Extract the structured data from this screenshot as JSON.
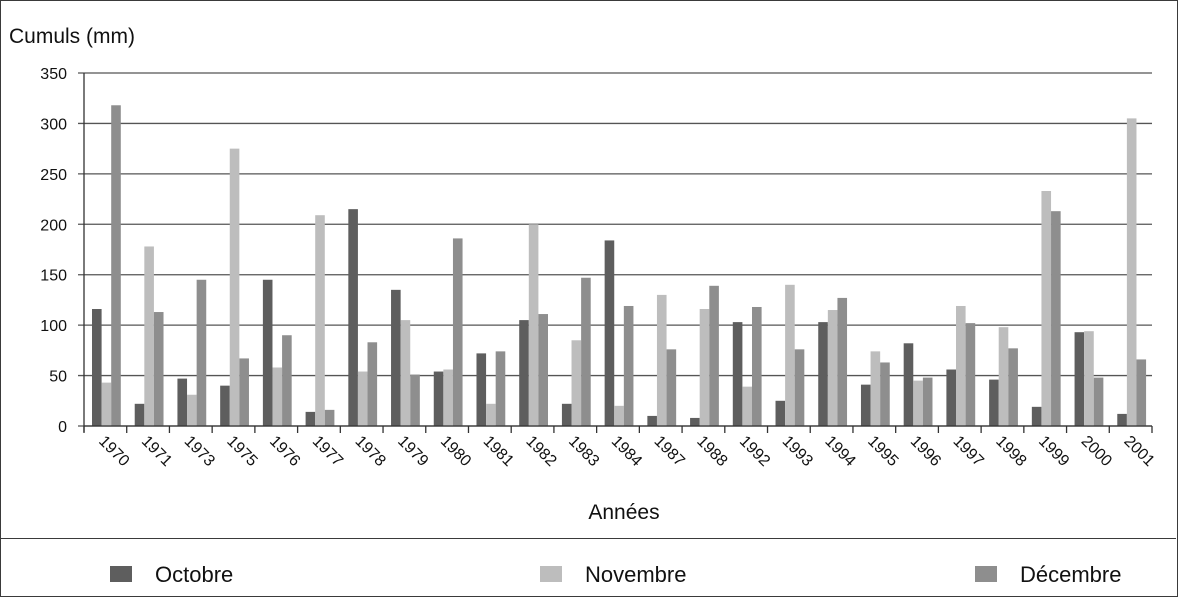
{
  "chart_data": {
    "type": "bar",
    "ylabel": "Cumuls (mm)",
    "xlabel": "Années",
    "ylim": [
      0,
      350
    ],
    "yticks": [
      0,
      50,
      100,
      150,
      200,
      250,
      300,
      350
    ],
    "grid": true,
    "legend_position": "bottom",
    "categories": [
      "1970",
      "1971",
      "1973",
      "1975",
      "1976",
      "1977",
      "1978",
      "1979",
      "1980",
      "1981",
      "1982",
      "1983",
      "1984",
      "1987",
      "1988",
      "1992",
      "1993",
      "1994",
      "1995",
      "1996",
      "1997",
      "1998",
      "1999",
      "2000",
      "2001"
    ],
    "series": [
      {
        "name": "Octobre",
        "color": "#5e5e5e",
        "values": [
          116,
          22,
          47,
          40,
          145,
          14,
          215,
          135,
          54,
          72,
          105,
          22,
          184,
          10,
          8,
          103,
          25,
          103,
          41,
          82,
          56,
          46,
          19,
          93,
          12
        ]
      },
      {
        "name": "Novembre",
        "color": "#bdbdbd",
        "values": [
          43,
          178,
          31,
          275,
          58,
          209,
          54,
          105,
          56,
          22,
          200,
          85,
          20,
          130,
          116,
          39,
          140,
          115,
          74,
          45,
          119,
          98,
          233,
          94,
          305
        ]
      },
      {
        "name": "Décembre",
        "color": "#8e8e8e",
        "values": [
          318,
          113,
          145,
          67,
          90,
          16,
          83,
          51,
          186,
          74,
          111,
          147,
          119,
          76,
          139,
          118,
          76,
          127,
          63,
          48,
          102,
          77,
          213,
          48,
          66
        ]
      }
    ]
  }
}
